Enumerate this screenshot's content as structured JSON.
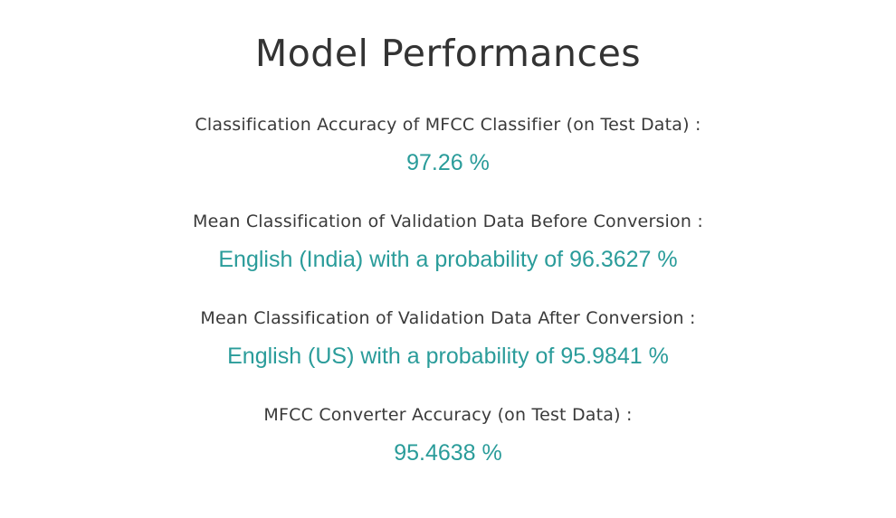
{
  "page": {
    "title": "Model Performances"
  },
  "metrics": [
    {
      "label": "Classification Accuracy of MFCC Classifier (on Test Data) :",
      "value": "97.26 %"
    },
    {
      "label": "Mean Classification of Validation Data Before Conversion :",
      "value": "English (India) with a probability of 96.3627 %"
    },
    {
      "label": "Mean Classification of Validation Data After Conversion :",
      "value": "English (US) with a probability of 95.9841 %"
    },
    {
      "label": "MFCC Converter Accuracy (on Test Data) :",
      "value": "95.4638 %"
    }
  ],
  "colors": {
    "title": "#333333",
    "label": "#3a3a3a",
    "value": "#2a9c9a",
    "background": "#ffffff"
  }
}
